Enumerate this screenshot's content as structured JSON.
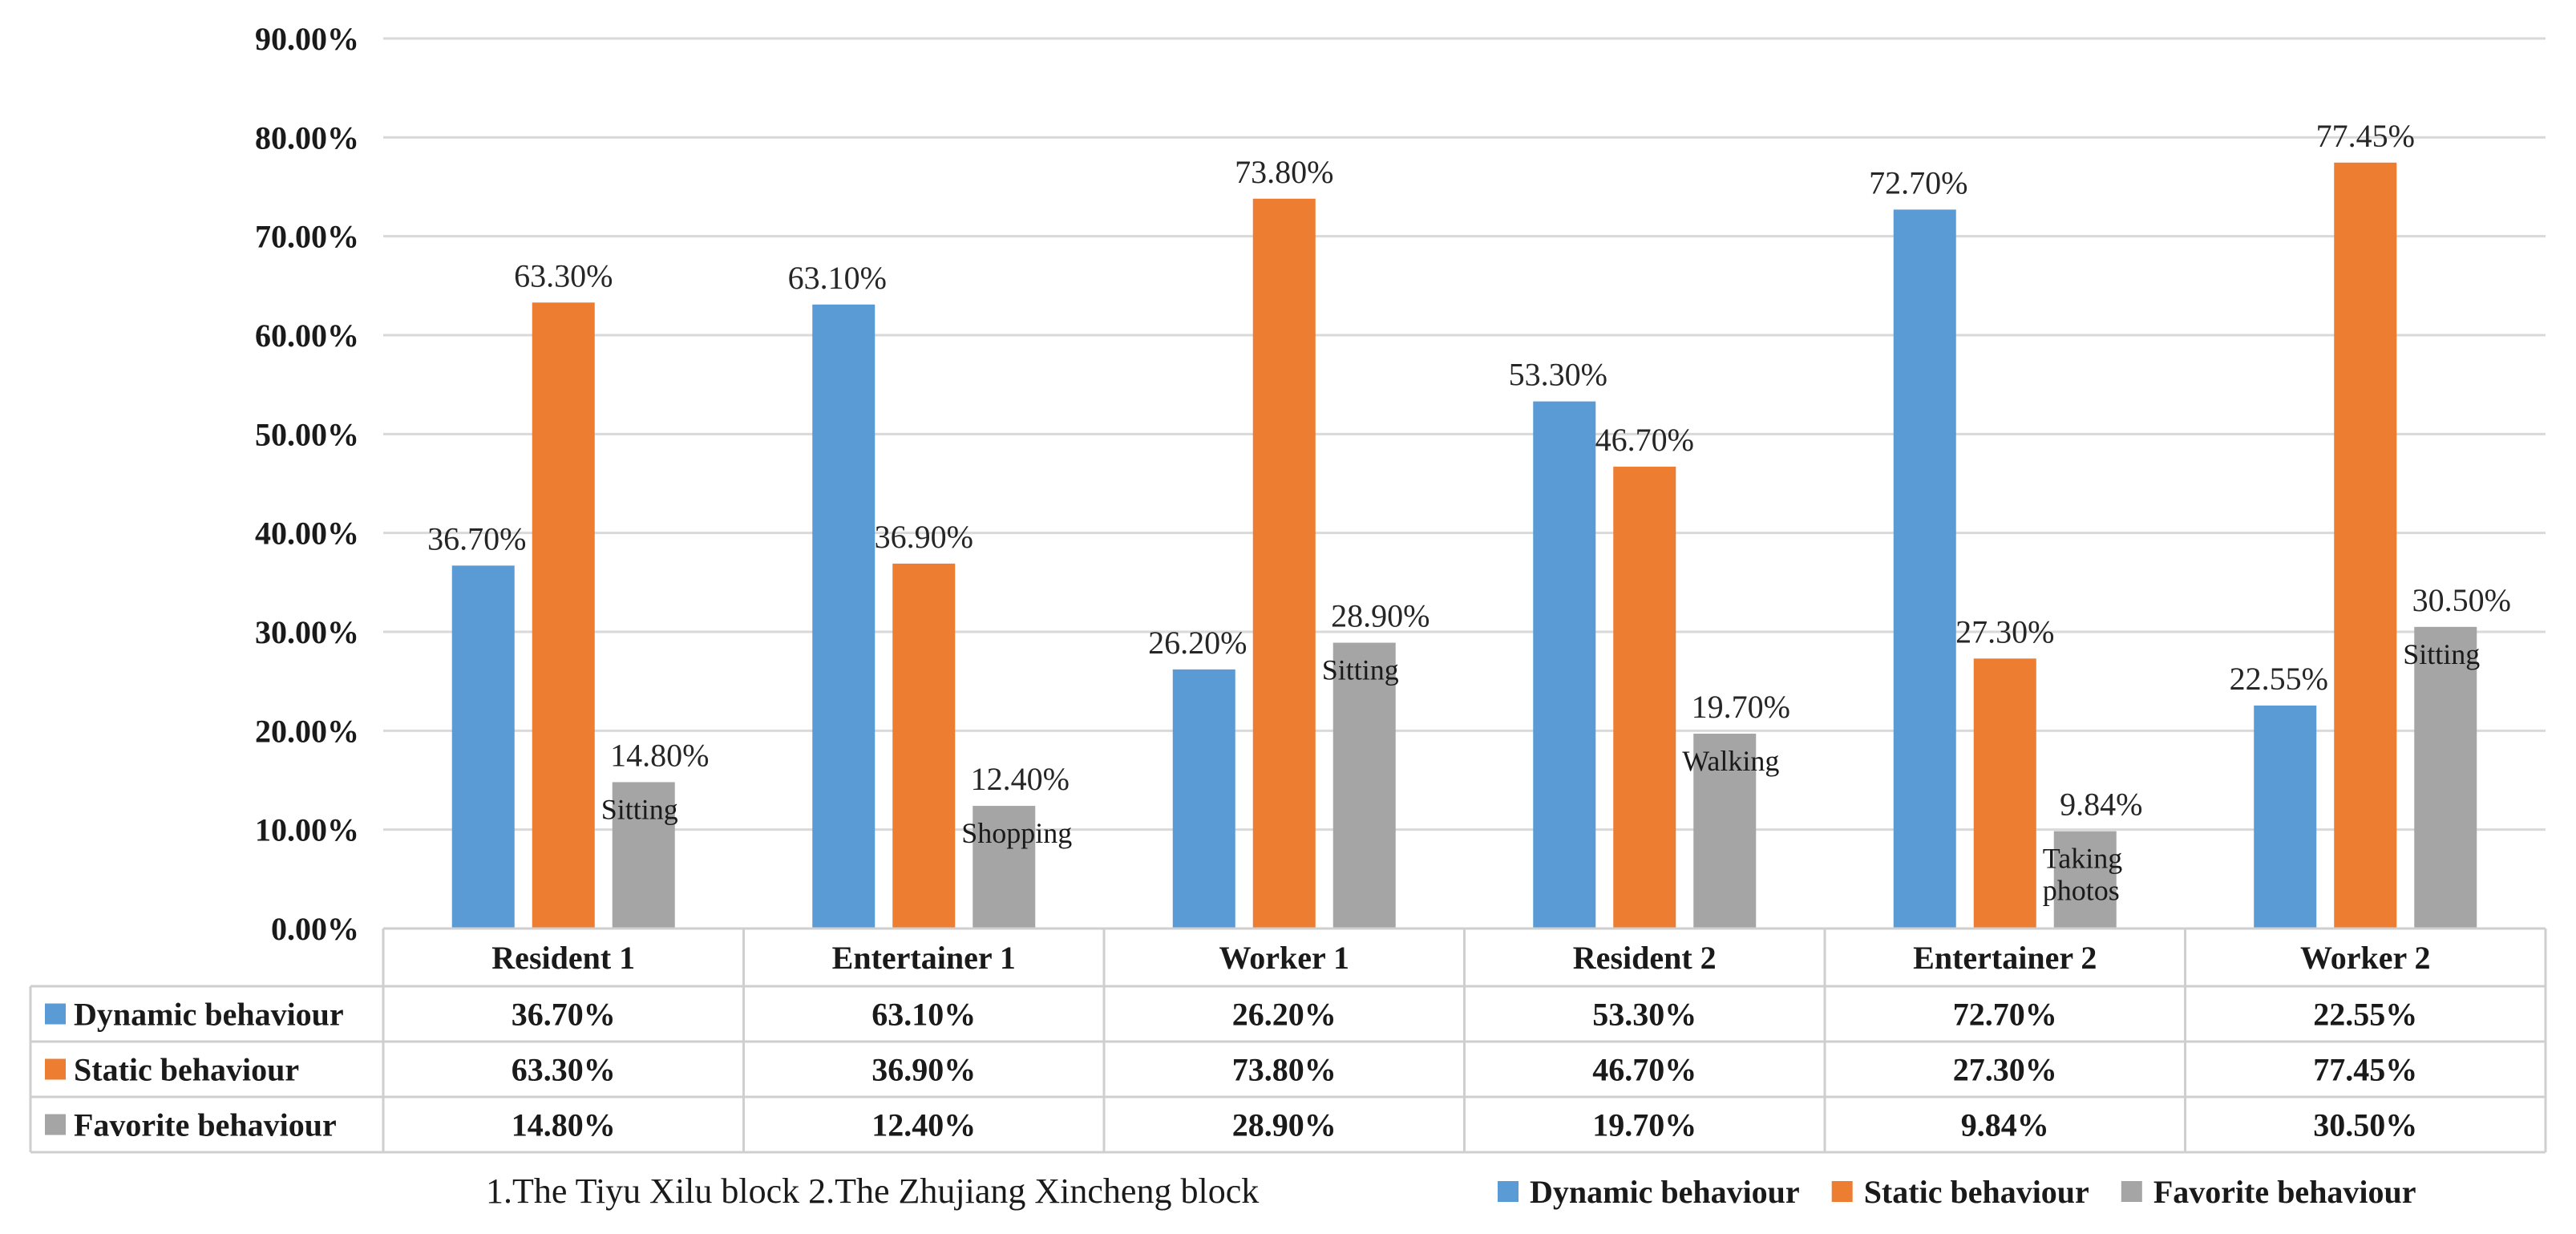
{
  "chart_data": {
    "type": "bar",
    "title": "",
    "xlabel": "",
    "ylabel": "",
    "ylim": [
      0,
      90
    ],
    "yticks": [
      "0.00%",
      "10.00%",
      "20.00%",
      "30.00%",
      "40.00%",
      "50.00%",
      "60.00%",
      "70.00%",
      "80.00%",
      "90.00%"
    ],
    "categories": [
      "Resident 1",
      "Entertainer 1",
      "Worker 1",
      "Resident 2",
      "Entertainer 2",
      "Worker 2"
    ],
    "series": [
      {
        "name": "Dynamic behaviour",
        "color": "#5B9BD5",
        "values": [
          36.7,
          63.1,
          26.2,
          53.3,
          72.7,
          22.55
        ],
        "labels": [
          "36.70%",
          "63.10%",
          "26.20%",
          "53.30%",
          "72.70%",
          "22.55%"
        ]
      },
      {
        "name": "Static behaviour",
        "color": "#ED7D31",
        "values": [
          63.3,
          36.9,
          73.8,
          46.7,
          27.3,
          77.45
        ],
        "labels": [
          "63.30%",
          "36.90%",
          "73.80%",
          "46.70%",
          "27.30%",
          "77.45%"
        ]
      },
      {
        "name": "Favorite behaviour",
        "color": "#A5A5A5",
        "values": [
          14.8,
          12.4,
          28.9,
          19.7,
          9.84,
          30.5
        ],
        "labels": [
          "14.80%",
          "12.40%",
          "28.90%",
          "19.70%",
          "9.84%",
          "30.50%"
        ],
        "annotations": [
          "Sitting",
          "Shopping",
          "Sitting",
          "Walking",
          "Taking photos",
          "Sitting"
        ]
      }
    ],
    "grid": true,
    "legend": "bottom-right",
    "data_table": true,
    "footnote": "1.The Tiyu Xilu block  2.The Zhujiang Xincheng block"
  }
}
